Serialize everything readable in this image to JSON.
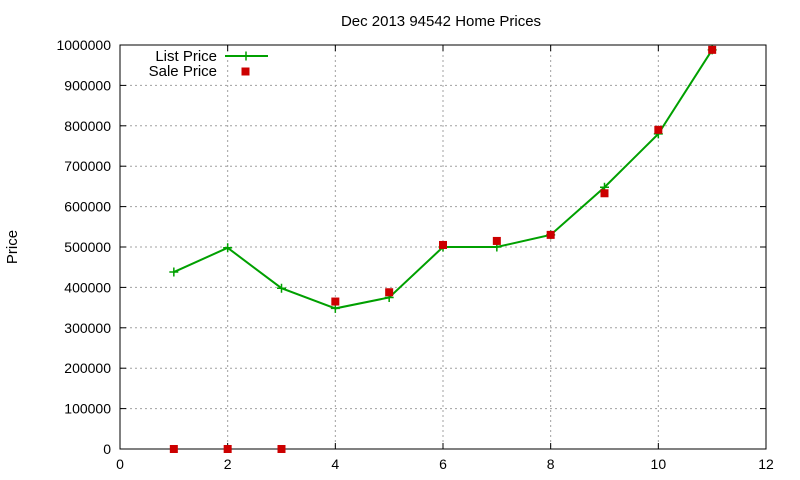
{
  "chart_data": {
    "type": "line",
    "title": "Dec 2013 94542 Home Prices",
    "xlabel": "",
    "ylabel": "Price",
    "xlim": [
      0,
      12
    ],
    "ylim": [
      0,
      1000000
    ],
    "xticks": [
      0,
      2,
      4,
      6,
      8,
      10,
      12
    ],
    "yticks": [
      0,
      100000,
      200000,
      300000,
      400000,
      500000,
      600000,
      700000,
      800000,
      900000,
      1000000
    ],
    "grid": true,
    "legend_position": "top-left",
    "series": [
      {
        "name": "List Price",
        "style": "line+cross",
        "color": "#00a000",
        "x": [
          1,
          2,
          3,
          4,
          5,
          6,
          7,
          8,
          9,
          10,
          11
        ],
        "y": [
          438000,
          498000,
          398000,
          348000,
          375000,
          500000,
          500000,
          530000,
          648000,
          780000,
          988000
        ]
      },
      {
        "name": "Sale Price",
        "style": "square",
        "color": "#cc0000",
        "x": [
          1,
          2,
          3,
          4,
          5,
          6,
          7,
          8,
          9,
          10,
          11
        ],
        "y": [
          0,
          0,
          0,
          365000,
          388000,
          505000,
          515000,
          530000,
          633000,
          790000,
          988000
        ]
      }
    ]
  }
}
